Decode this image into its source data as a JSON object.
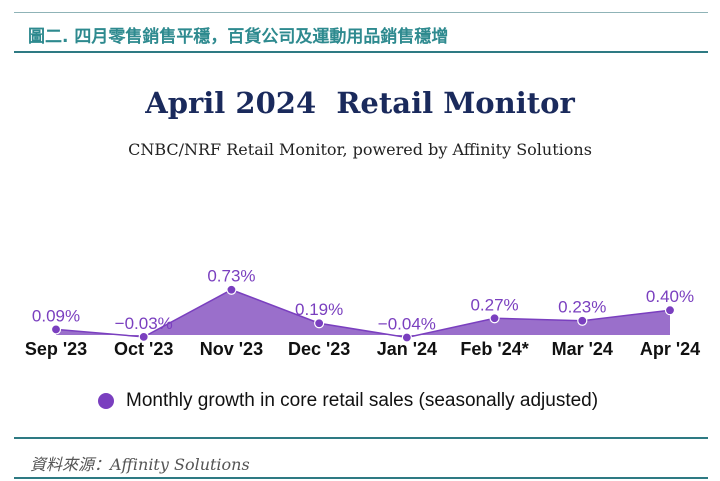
{
  "figure_title": "圖二. 四月零售銷售平穩，百貨公司及運動用品銷售穩增",
  "source_note": "資料來源：Affinity Solutions",
  "colors": {
    "accent": "#2e8a8f",
    "rule": "#2e7a83",
    "series_fill": "#9a6fcb",
    "series_stroke": "#7a3fbf",
    "series_label": "#7a3fbf",
    "title": "#1a2a5c"
  },
  "chart_data": {
    "type": "area",
    "title": "April 2024  Retail Monitor",
    "subtitle": "CNBC/NRF Retail Monitor, powered by Affinity Solutions",
    "categories": [
      "Sep '23",
      "Oct '23",
      "Nov '23",
      "Dec '23",
      "Jan '24",
      "Feb '24*",
      "Mar '24",
      "Apr '24"
    ],
    "series": [
      {
        "name": "Monthly growth in core retail sales (seasonally adjusted)",
        "values": [
          0.09,
          -0.03,
          0.73,
          0.19,
          -0.04,
          0.27,
          0.23,
          0.4
        ],
        "labels": [
          "0.09%",
          "−0.03%",
          "0.73%",
          "0.19%",
          "−0.04%",
          "0.27%",
          "0.23%",
          "0.40%"
        ]
      }
    ],
    "legend_position": "bottom",
    "grid": false
  }
}
